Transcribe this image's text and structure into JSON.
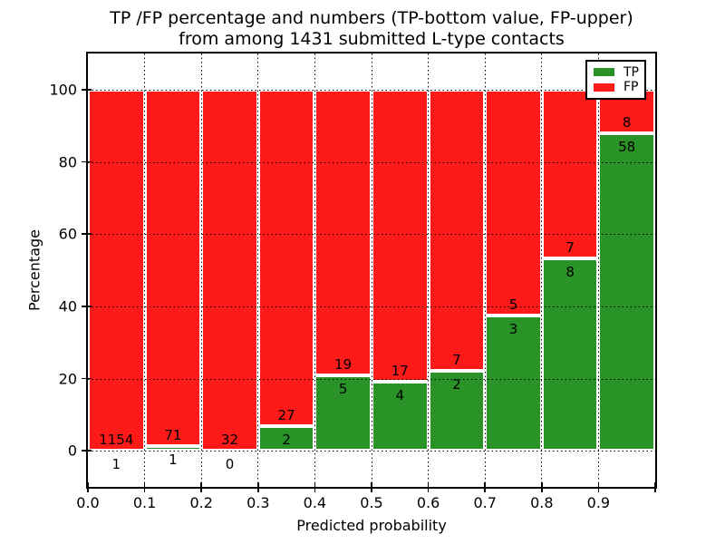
{
  "figure": {
    "title_line1": "TP /FP percentage and numbers (TP-bottom value, FP-upper)",
    "title_line2": "from among 1431 submitted L-type contacts",
    "background_color": "#ffffff",
    "frame_color": "#000000"
  },
  "chart_data": {
    "type": "bar",
    "stacked": true,
    "normalized_to_percent": true,
    "title": "TP /FP percentage and numbers (TP-bottom value, FP-upper) from among 1431 submitted L-type contacts",
    "xlabel": "Predicted probability",
    "ylabel": "Percentage",
    "xlim": [
      0.0,
      1.0
    ],
    "ylim": [
      -10,
      110
    ],
    "bin_width": 0.1,
    "bin_edges": [
      0.0,
      0.1,
      0.2,
      0.3,
      0.4,
      0.5,
      0.6,
      0.7,
      0.8,
      0.9,
      1.0
    ],
    "x_tick_values": [
      0.0,
      0.1,
      0.2,
      0.3,
      0.4,
      0.5,
      0.6,
      0.7,
      0.8,
      0.9
    ],
    "x_tick_labels": [
      "0.0",
      "0.1",
      "0.2",
      "0.3",
      "0.4",
      "0.5",
      "0.6",
      "0.7",
      "0.8",
      "0.9"
    ],
    "y_tick_values": [
      0,
      20,
      40,
      60,
      80,
      100
    ],
    "y_tick_labels": [
      "0",
      "20",
      "40",
      "60",
      "80",
      "100"
    ],
    "grid": "dotted-black-over-bars",
    "total_contacts": 1431,
    "series": [
      {
        "name": "TP",
        "color": "#2a9328",
        "position": "bottom",
        "counts": [
          1,
          1,
          0,
          2,
          5,
          4,
          2,
          3,
          8,
          58
        ],
        "percent": [
          0.09,
          1.39,
          0.0,
          6.9,
          20.83,
          19.05,
          22.22,
          37.5,
          53.33,
          87.88
        ]
      },
      {
        "name": "FP",
        "color": "#ff1a1a",
        "position": "top",
        "counts": [
          1154,
          71,
          32,
          27,
          19,
          17,
          7,
          5,
          7,
          8
        ],
        "percent": [
          99.91,
          98.61,
          100.0,
          93.1,
          79.17,
          80.95,
          77.78,
          62.5,
          46.67,
          12.12
        ]
      }
    ],
    "bar_edge_color": "#ffffff",
    "legend": {
      "position": "upper-right",
      "entries": [
        {
          "label": "TP",
          "color": "#2a9328"
        },
        {
          "label": "FP",
          "color": "#ff1a1a"
        }
      ]
    }
  }
}
